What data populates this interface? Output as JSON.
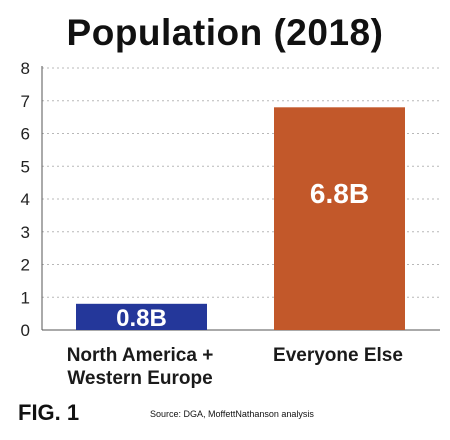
{
  "chart_data": {
    "type": "bar",
    "title": "Population (2018)",
    "categories": [
      "North America +\nWestern Europe",
      "Everyone Else"
    ],
    "values": [
      0.8,
      6.8
    ],
    "data_labels": [
      "0.8B",
      "6.8B"
    ],
    "colors": [
      "#24379a",
      "#c2582a"
    ],
    "xlabel": "",
    "ylabel": "",
    "ylim": [
      0,
      8
    ],
    "yticks": [
      0,
      1,
      2,
      3,
      4,
      5,
      6,
      7,
      8
    ],
    "grid": true,
    "grid_style": "dotted",
    "legend": false
  },
  "figure_label": "FIG. 1",
  "source": "Source: DGA, MoffettNathanson analysis"
}
